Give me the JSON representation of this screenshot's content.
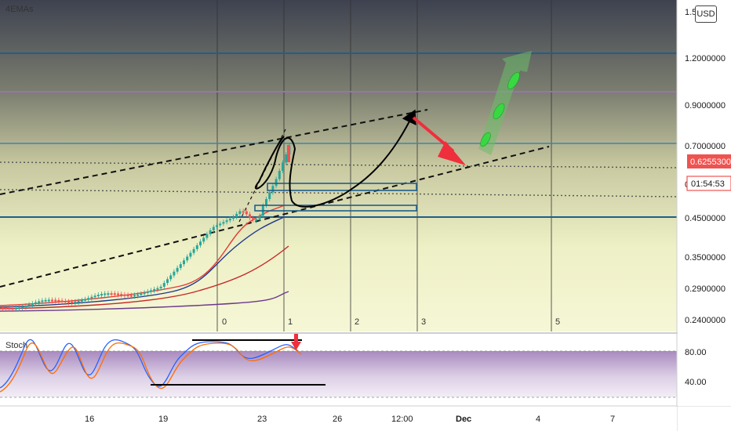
{
  "main_pane": {
    "indicator_label": "4EMAs",
    "price_axis_labels": [
      "1.5",
      "1.2000000",
      "0.9000000",
      "0.7000000",
      "0.4500000",
      "0.3500000",
      "0.2900000",
      "0.2400000"
    ],
    "current_price": "0.6255300",
    "countdown": "01:54:53",
    "countdown_prefix": "0",
    "currency_button": "USD",
    "cycle_labels": [
      "0",
      "1",
      "2",
      "3",
      "5"
    ]
  },
  "stoch_pane": {
    "label": "Stoch",
    "axis_labels": [
      "80.00",
      "40.00"
    ]
  },
  "time_axis": [
    "16",
    "19",
    "23",
    "26",
    "12:00",
    "Dec",
    "4",
    "7"
  ],
  "colors": {
    "bull_candle": "#26a69a",
    "bear_candle": "#ef5350",
    "price_label_bg": "#ef5350",
    "level_line": "#1f5f8b",
    "purple_line": "#9c6fb6",
    "stoch_k": "#2962ff",
    "stoch_d": "#ff6d00",
    "arrow_red": "#ef2f3c",
    "arrow_green": "#34d34a"
  },
  "chart_data": {
    "type": "candlestick",
    "price_scale": "log",
    "horizontal_levels": [
      1.23,
      0.97,
      0.71,
      0.455
    ],
    "moving_averages": [
      "EMA",
      "EMA",
      "EMA",
      "EMA"
    ],
    "stochastic_levels": [
      80,
      20
    ]
  }
}
